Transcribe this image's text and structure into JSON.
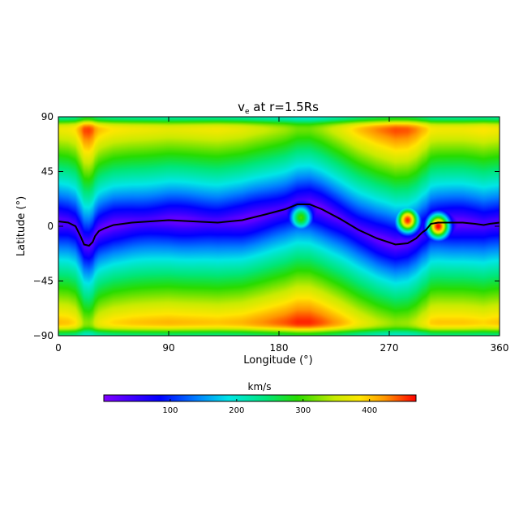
{
  "chart_data": {
    "type": "heatmap",
    "title_main": "v",
    "title_sub": "e",
    "title_rest": " at r=1.5Rs",
    "xlabel": "Longitude (°)",
    "ylabel": "Latitude (°)",
    "xlim": [
      0,
      360
    ],
    "ylim": [
      -90,
      90
    ],
    "xticks": [
      "0",
      "90",
      "180",
      "270",
      "360"
    ],
    "xtick_values": [
      0,
      90,
      180,
      270,
      360
    ],
    "yticks": [
      "90",
      "45",
      "0",
      "−45",
      "−90"
    ],
    "ytick_values": [
      90,
      45,
      0,
      -45,
      -90
    ],
    "colorbar": {
      "label": "km/s",
      "range": [
        0,
        470
      ],
      "ticks": [
        "100",
        "200",
        "300",
        "400"
      ],
      "tick_values": [
        100,
        200,
        300,
        400
      ],
      "colormap": "rainbow (violet-blue-cyan-green-yellow-red)"
    },
    "neutral_line": {
      "color": "#000000",
      "points": [
        [
          0,
          4
        ],
        [
          8,
          3
        ],
        [
          14,
          0
        ],
        [
          18,
          -8
        ],
        [
          21,
          -15
        ],
        [
          25,
          -16
        ],
        [
          28,
          -13
        ],
        [
          30,
          -8
        ],
        [
          33,
          -4
        ],
        [
          37,
          -2
        ],
        [
          45,
          1
        ],
        [
          60,
          3
        ],
        [
          90,
          5
        ],
        [
          110,
          4
        ],
        [
          130,
          3
        ],
        [
          150,
          5
        ],
        [
          170,
          10
        ],
        [
          185,
          14
        ],
        [
          195,
          18
        ],
        [
          205,
          18
        ],
        [
          215,
          14
        ],
        [
          230,
          6
        ],
        [
          245,
          -3
        ],
        [
          260,
          -10
        ],
        [
          275,
          -15
        ],
        [
          285,
          -14
        ],
        [
          292,
          -10
        ],
        [
          297,
          -5
        ],
        [
          300,
          -3
        ],
        [
          304,
          2
        ],
        [
          310,
          3
        ],
        [
          320,
          3
        ],
        [
          330,
          3
        ],
        [
          340,
          2
        ],
        [
          347,
          1
        ],
        [
          352,
          2
        ],
        [
          360,
          3
        ]
      ]
    },
    "features": [
      {
        "lon": 285,
        "lat": 5,
        "peak": 460
      },
      {
        "lon": 310,
        "lat": 0,
        "peak": 470
      },
      {
        "lon": 198,
        "lat": 7,
        "peak": 300
      }
    ]
  }
}
